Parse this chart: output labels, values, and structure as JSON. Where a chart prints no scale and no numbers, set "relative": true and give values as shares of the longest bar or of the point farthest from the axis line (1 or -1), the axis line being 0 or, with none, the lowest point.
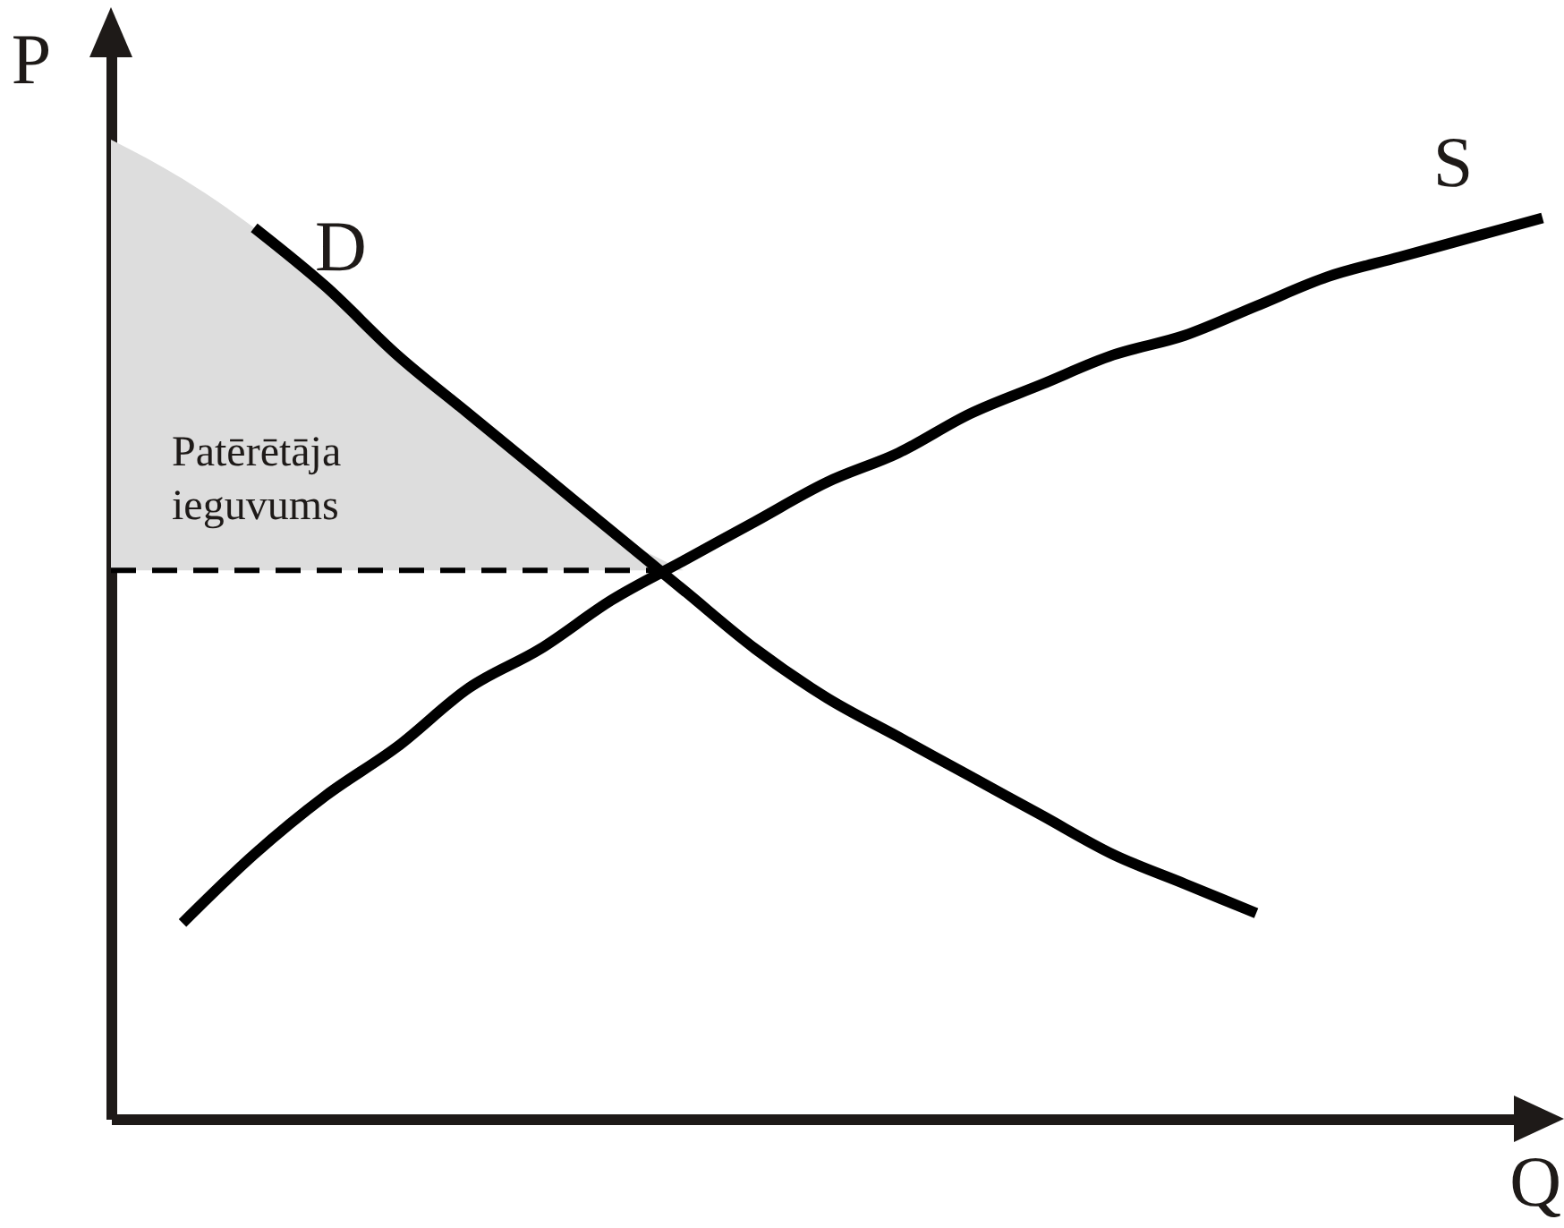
{
  "chart_data": {
    "type": "line",
    "relative": true,
    "xlabel": "Q",
    "ylabel": "P",
    "categories": [
      null,
      null,
      null,
      null,
      null,
      null,
      null,
      null,
      null,
      null,
      null,
      null,
      null,
      null,
      null,
      null,
      null,
      null,
      null,
      null,
      null
    ],
    "series": [
      {
        "type": "area",
        "name": "Patērētāja ieguvums",
        "color": "#dddddd",
        "values": [
          1.0,
          0.96,
          0.91,
          0.85,
          0.78,
          0.72,
          0.66,
          0.6,
          0.56,
          null,
          null,
          null,
          null,
          null,
          null,
          null,
          null,
          null,
          null,
          null,
          null
        ]
      },
      {
        "line_style": "dashed",
        "color": "#000000",
        "values": [
          0.56,
          0.56,
          0.56,
          0.56,
          0.56,
          0.56,
          0.56,
          0.56,
          0.56,
          null,
          null,
          null,
          null,
          null,
          null,
          null,
          null,
          null,
          null,
          null,
          null
        ]
      },
      {
        "name": "D",
        "color": "#000000",
        "values": [
          null,
          null,
          0.91,
          0.85,
          0.78,
          0.72,
          0.66,
          0.6,
          0.54,
          0.48,
          0.43,
          0.39,
          0.35,
          0.31,
          0.27,
          0.24,
          0.21,
          null,
          null,
          null,
          null
        ]
      },
      {
        "name": "S",
        "color": "#000000",
        "values": [
          null,
          0.2,
          0.27,
          0.33,
          0.38,
          0.44,
          0.48,
          0.53,
          0.57,
          0.61,
          0.65,
          0.68,
          0.72,
          0.75,
          0.78,
          0.8,
          0.83,
          0.86,
          0.88,
          0.9,
          0.92
        ]
      }
    ]
  }
}
